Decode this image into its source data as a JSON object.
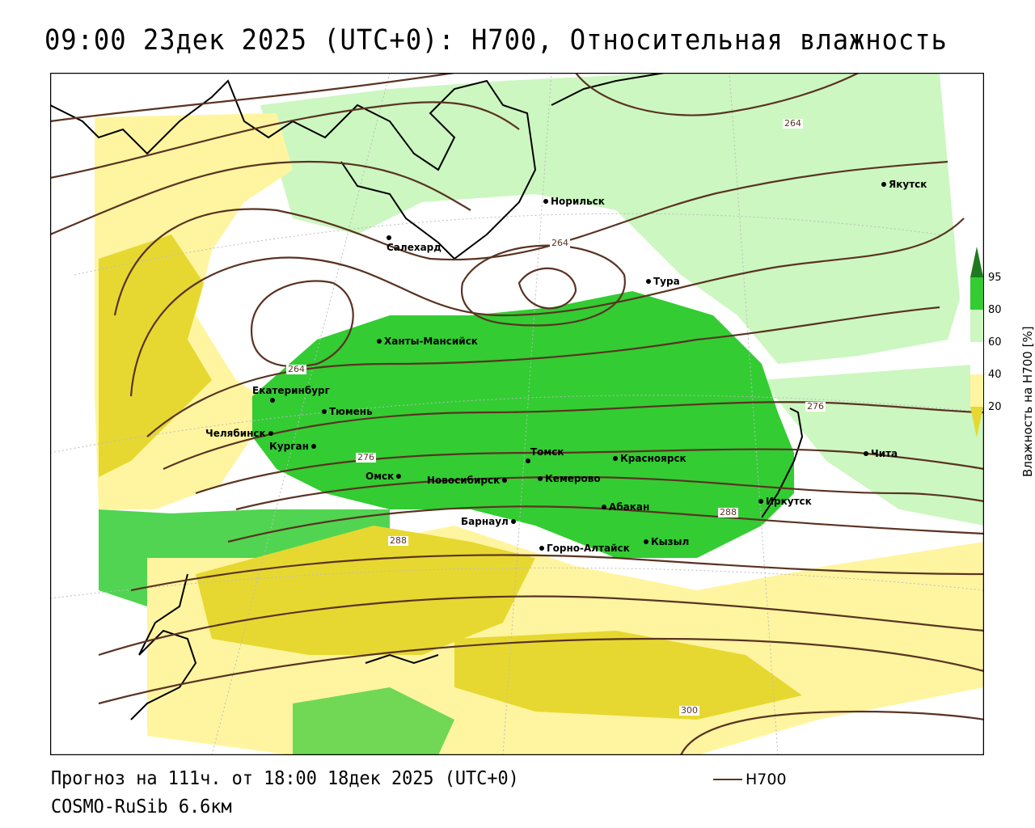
{
  "title": "09:00 23дек 2025 (UTC+0): H700, Относительная влажность",
  "footer": {
    "forecast": "Прогноз на 111ч. от 18:00 18дек 2025 (UTC+0)",
    "model": "COSMO-RuSib 6.6км",
    "legend_label": "H700"
  },
  "colorbar": {
    "title": "Влажность на H700 [%]",
    "ticks": [
      "95",
      "80",
      "60",
      "40",
      "20"
    ],
    "colors": {
      "c95": "#1e7a1e",
      "c80": "#33cc33",
      "c60": "#ccf7c0",
      "c40": "#ffffff",
      "c20": "#fff5a0",
      "c0": "#e6d830"
    }
  },
  "cities": [
    {
      "name": "Норильск"
    },
    {
      "name": "Якутск"
    },
    {
      "name": "Салехард"
    },
    {
      "name": "Тура"
    },
    {
      "name": "Ханты-Мансийск"
    },
    {
      "name": "Екатеринбург"
    },
    {
      "name": "Тюмень"
    },
    {
      "name": "Челябинск"
    },
    {
      "name": "Курган"
    },
    {
      "name": "Омск"
    },
    {
      "name": "Новосибирск"
    },
    {
      "name": "Томск"
    },
    {
      "name": "Кемерово"
    },
    {
      "name": "Красноярск"
    },
    {
      "name": "Барнаул"
    },
    {
      "name": "Абакан"
    },
    {
      "name": "Иркутск"
    },
    {
      "name": "Чита"
    },
    {
      "name": "Горно-Алтайск"
    },
    {
      "name": "Кызыл"
    }
  ],
  "contour_labels": [
    "264",
    "264",
    "264",
    "276",
    "276",
    "288",
    "288",
    "300"
  ]
}
